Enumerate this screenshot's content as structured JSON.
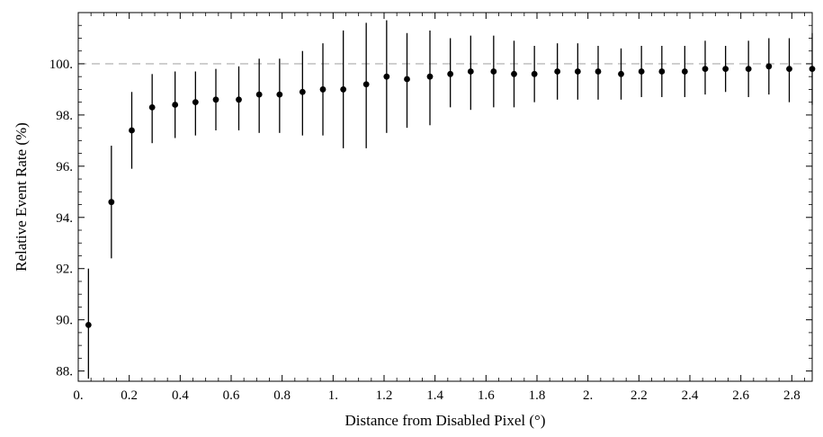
{
  "chart_data": {
    "type": "scatter",
    "title": "",
    "xlabel": "Distance from Disabled Pixel (°)",
    "ylabel": "Relative Event Rate (%)",
    "xlim": [
      0.0,
      2.88
    ],
    "ylim": [
      87.6,
      102.0
    ],
    "x_ticks": [
      0.0,
      0.2,
      0.4,
      0.6,
      0.8,
      1.0,
      1.2,
      1.4,
      1.6,
      1.8,
      2.0,
      2.2,
      2.4,
      2.6,
      2.8
    ],
    "x_tick_labels": [
      "0.",
      "0.2",
      "0.4",
      "0.6",
      "0.8",
      "1.",
      "1.2",
      "1.4",
      "1.6",
      "1.8",
      "2.",
      "2.2",
      "2.4",
      "2.6",
      "2.8"
    ],
    "y_ticks": [
      88,
      90,
      92,
      94,
      96,
      98,
      100
    ],
    "y_tick_labels": [
      "88.",
      "90.",
      "92.",
      "94.",
      "96.",
      "98.",
      "100."
    ],
    "reference_line": {
      "y": 100,
      "style": "dashed",
      "color": "#aaaaaa"
    },
    "marker_color": "#000000",
    "grid": false,
    "series": [
      {
        "x": [
          0.04,
          0.13,
          0.21,
          0.29,
          0.38,
          0.46,
          0.54,
          0.63,
          0.71,
          0.79,
          0.88,
          0.96,
          1.04,
          1.13,
          1.21,
          1.29,
          1.38,
          1.46,
          1.54,
          1.63,
          1.71,
          1.79,
          1.88,
          1.96,
          2.04,
          2.13,
          2.21,
          2.29,
          2.38,
          2.46,
          2.54,
          2.63,
          2.71,
          2.79,
          2.88
        ],
        "y": [
          89.8,
          94.6,
          97.4,
          98.3,
          98.4,
          98.5,
          98.6,
          98.6,
          98.8,
          98.8,
          98.9,
          99.0,
          99.0,
          99.2,
          99.5,
          99.4,
          99.5,
          99.6,
          99.7,
          99.7,
          99.6,
          99.6,
          99.7,
          99.7,
          99.7,
          99.6,
          99.7,
          99.7,
          99.7,
          99.8,
          99.8,
          99.8,
          99.9,
          99.8,
          99.8
        ],
        "y_low": [
          87.7,
          92.4,
          95.9,
          96.9,
          97.1,
          97.2,
          97.4,
          97.4,
          97.3,
          97.3,
          97.2,
          97.2,
          96.7,
          96.7,
          97.3,
          97.5,
          97.6,
          98.3,
          98.2,
          98.3,
          98.3,
          98.5,
          98.6,
          98.6,
          98.6,
          98.6,
          98.7,
          98.7,
          98.7,
          98.8,
          98.9,
          98.7,
          98.8,
          98.5,
          98.4
        ],
        "y_high": [
          92.0,
          96.8,
          98.9,
          99.6,
          99.7,
          99.7,
          99.8,
          99.9,
          100.2,
          100.2,
          100.5,
          100.8,
          101.3,
          101.6,
          101.7,
          101.2,
          101.3,
          101.0,
          101.1,
          101.1,
          100.9,
          100.7,
          100.8,
          100.8,
          100.7,
          100.6,
          100.7,
          100.7,
          100.7,
          100.9,
          100.7,
          100.9,
          101.0,
          101.0,
          101.2
        ]
      }
    ]
  }
}
